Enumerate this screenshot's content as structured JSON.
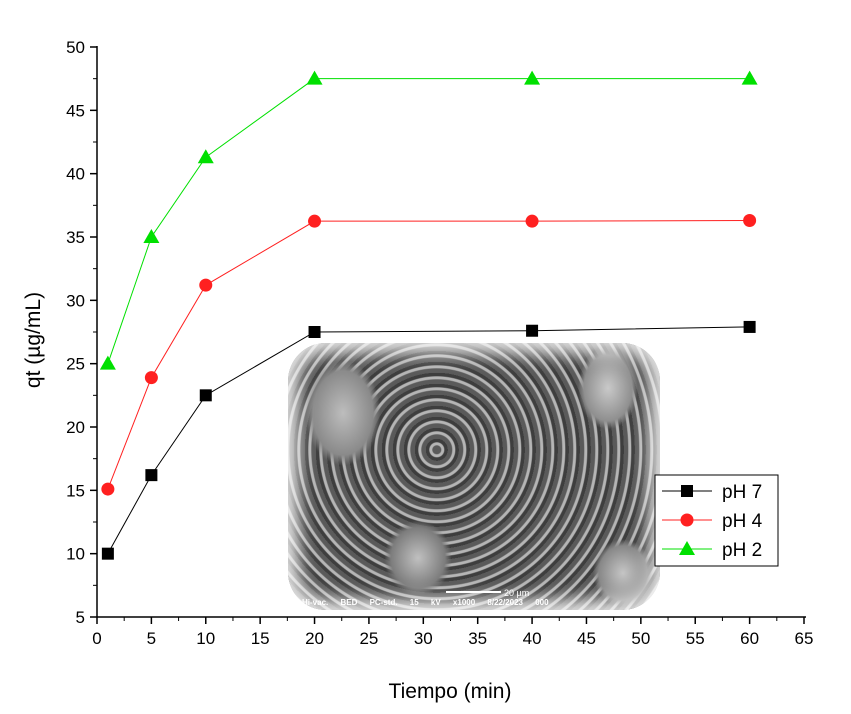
{
  "chart_data": {
    "type": "line",
    "xlabel": "Tiempo (min)",
    "ylabel": "qt (µg/mL)",
    "xlim": [
      0,
      65
    ],
    "ylim": [
      5,
      50
    ],
    "xticks": [
      0,
      5,
      10,
      15,
      20,
      25,
      30,
      35,
      40,
      45,
      50,
      55,
      60,
      65
    ],
    "yticks": [
      5,
      10,
      15,
      20,
      25,
      30,
      35,
      40,
      45,
      50
    ],
    "legend_position": "right",
    "series": [
      {
        "name": "pH 7",
        "marker": "square",
        "color": "#000000",
        "x": [
          1,
          5,
          10,
          20,
          40,
          60
        ],
        "y": [
          10,
          16.2,
          22.5,
          27.5,
          27.6,
          27.9
        ]
      },
      {
        "name": "pH 4",
        "marker": "circle",
        "color": "#ff2020",
        "x": [
          1,
          5,
          10,
          20,
          40,
          60
        ],
        "y": [
          15.1,
          23.9,
          31.2,
          36.25,
          36.25,
          36.3
        ]
      },
      {
        "name": "pH 2",
        "marker": "triangle",
        "color": "#00e000",
        "x": [
          1,
          5,
          10,
          20,
          40,
          60
        ],
        "y": [
          25,
          35,
          41.3,
          47.5,
          47.5,
          47.5
        ]
      }
    ]
  },
  "inset": {
    "footer": "Hi-vac. BED PC-std. 15 kV x1000 8/22/2023 000",
    "scale": "20 µm"
  }
}
